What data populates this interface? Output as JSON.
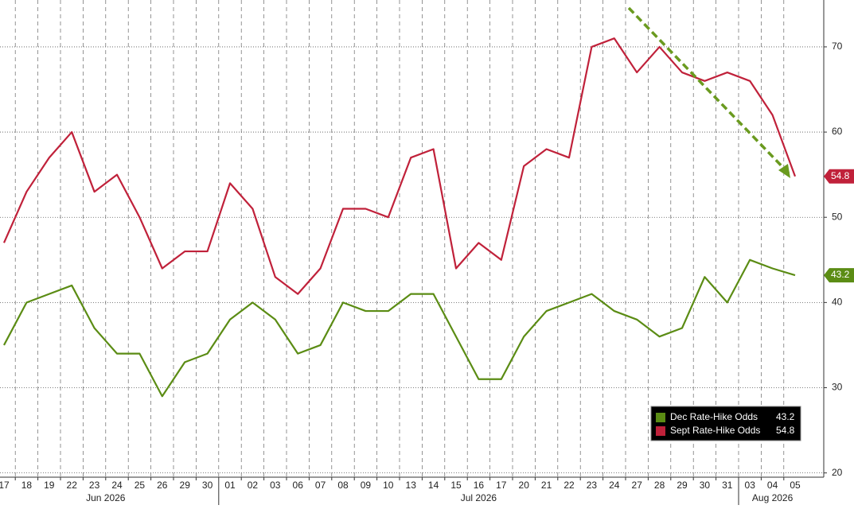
{
  "chart_data": {
    "type": "line",
    "categories": [
      "17",
      "18",
      "19",
      "22",
      "23",
      "24",
      "25",
      "26",
      "29",
      "30",
      "01",
      "02",
      "03",
      "06",
      "07",
      "08",
      "09",
      "10",
      "13",
      "14",
      "15",
      "16",
      "17",
      "20",
      "21",
      "22",
      "23",
      "24",
      "27",
      "28",
      "29",
      "30",
      "31",
      "03",
      "04",
      "05"
    ],
    "month_labels": [
      "Jun 2026",
      "Jul 2026",
      "Aug 2026"
    ],
    "series": [
      {
        "name": "Dec Rate-Hike Odds",
        "color": "#5b8c14",
        "values": [
          35,
          40,
          41,
          42,
          37,
          34,
          34,
          29,
          33,
          34,
          38,
          40,
          38,
          34,
          35,
          40,
          39,
          39,
          41,
          41,
          36,
          31,
          31,
          36,
          39,
          40,
          41,
          39,
          38,
          36,
          37,
          43,
          40,
          45,
          44,
          43.2
        ]
      },
      {
        "name": "Sept Rate-Hike Odds",
        "color": "#c0213a",
        "values": [
          47,
          53,
          57,
          60,
          53,
          55,
          50,
          44,
          46,
          46,
          54,
          51,
          43,
          41,
          44,
          51,
          51,
          50,
          57,
          58,
          44,
          47,
          45,
          56,
          58,
          57,
          70,
          71,
          67,
          70,
          67,
          66,
          67,
          66,
          62,
          54.8
        ]
      }
    ],
    "ylim": [
      19.5,
      75.5
    ],
    "yticks": [
      20,
      30,
      40,
      50,
      60,
      70
    ],
    "grid": true
  }
}
